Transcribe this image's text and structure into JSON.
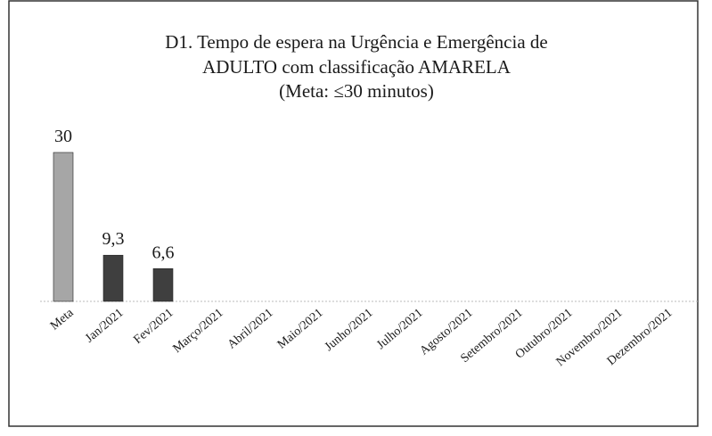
{
  "chart_data": {
    "type": "bar",
    "title": [
      "D1. Tempo de espera na Urgência e Emergência de",
      "ADULTO com classificação AMARELA",
      "(Meta: ≤30 minutos)"
    ],
    "categories": [
      "Meta",
      "Jan/2021",
      "Fev/2021",
      "Março/2021",
      "Abril/2021",
      "Maio/2021",
      "Junho/2021",
      "Julho/2021",
      "Agosto/2021",
      "Setembro/2021",
      "Outubro/2021",
      "Novembro/2021",
      "Dezembro/2021"
    ],
    "series": [
      {
        "color": "#a6a6a6",
        "values": [
          30,
          null,
          null,
          null,
          null,
          null,
          null,
          null,
          null,
          null,
          null,
          null,
          null
        ],
        "value_labels": [
          "30",
          null,
          null,
          null,
          null,
          null,
          null,
          null,
          null,
          null,
          null,
          null,
          null
        ]
      },
      {
        "color": "#3f3f3f",
        "values": [
          null,
          9.3,
          6.6,
          null,
          null,
          null,
          null,
          null,
          null,
          null,
          null,
          null,
          null
        ],
        "value_labels": [
          null,
          "9,3",
          "6,6",
          null,
          null,
          null,
          null,
          null,
          null,
          null,
          null,
          null,
          null
        ]
      }
    ],
    "ylim": [
      0,
      30
    ]
  }
}
